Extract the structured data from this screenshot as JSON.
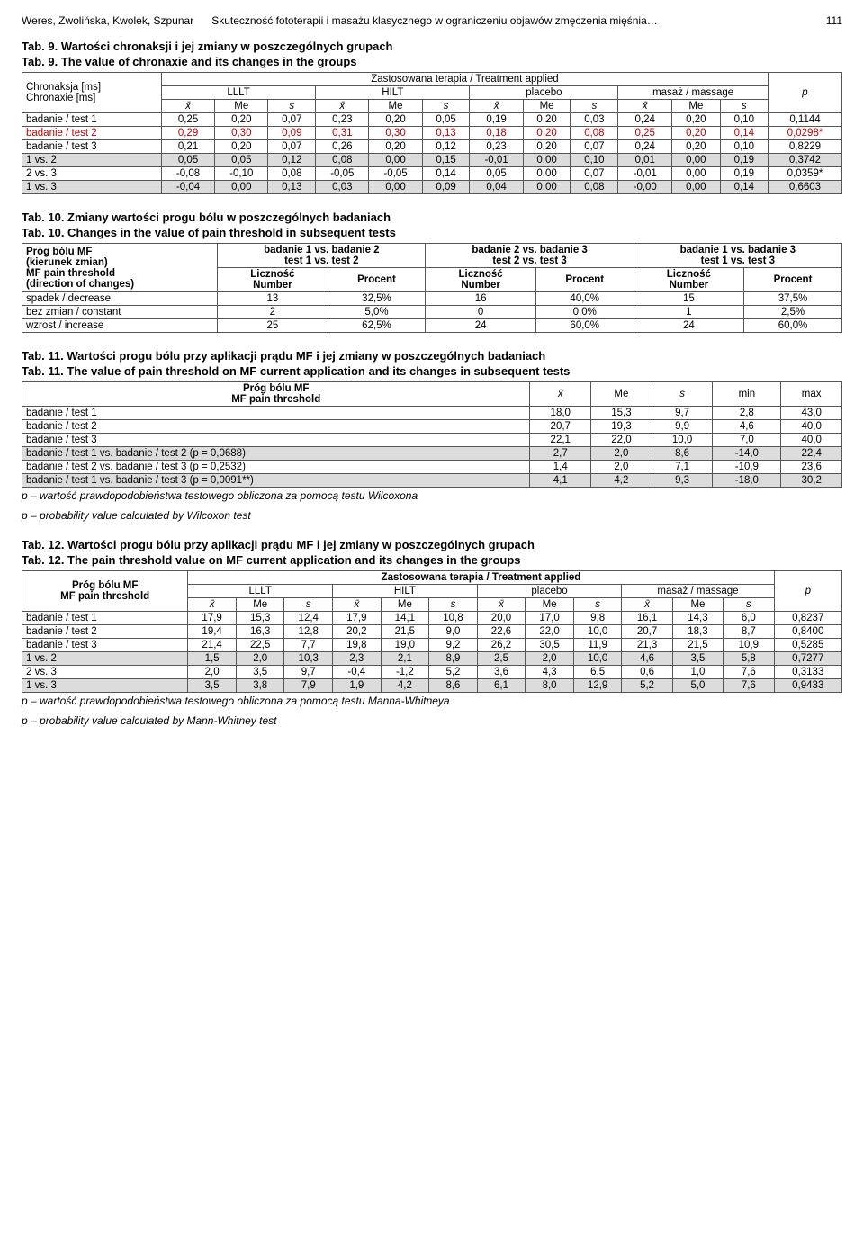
{
  "header": {
    "authors": "Weres, Zwolińska, Kwolek, Szpunar",
    "title_frag": "Skuteczność fototerapii i masażu klasycznego w ograniczeniu objawów zmęczenia mięśnia…",
    "page": "111"
  },
  "tab9": {
    "cap1": "Tab. 9. Wartości chronaksji i jej zmiany w poszczególnych grupach",
    "cap2": "Tab. 9. The value of chronaxie and its changes in the groups",
    "rowhead1": "Chronaksja [ms]",
    "rowhead2": "Chronaxie [ms]",
    "spanhead": "Zastosowana terapia / Treatment applied",
    "groups": [
      "LLLT",
      "HILT",
      "placebo",
      "masaż / massage"
    ],
    "sub": {
      "x": "x",
      "me": "Me",
      "s": "s"
    },
    "p": "p",
    "rows": [
      {
        "label": "badanie / test 1",
        "v": [
          "0,25",
          "0,20",
          "0,07",
          "0,23",
          "0,20",
          "0,05",
          "0,19",
          "0,20",
          "0,03",
          "0,24",
          "0,20",
          "0,10"
        ],
        "p": "0,1144",
        "hl": ""
      },
      {
        "label": "badanie / test 2",
        "v": [
          "0,29",
          "0,30",
          "0,09",
          "0,31",
          "0,30",
          "0,13",
          "0,18",
          "0,20",
          "0,08",
          "0,25",
          "0,20",
          "0,14"
        ],
        "p": "0,0298*",
        "hl": "red"
      },
      {
        "label": "badanie / test 3",
        "v": [
          "0,21",
          "0,20",
          "0,07",
          "0,26",
          "0,20",
          "0,12",
          "0,23",
          "0,20",
          "0,07",
          "0,24",
          "0,20",
          "0,10"
        ],
        "p": "0,8229",
        "hl": ""
      },
      {
        "label": "1 vs. 2",
        "v": [
          "0,05",
          "0,05",
          "0,12",
          "0,08",
          "0,00",
          "0,15",
          "-0,01",
          "0,00",
          "0,10",
          "0,01",
          "0,00",
          "0,19"
        ],
        "p": "0,3742",
        "hl": "grey"
      },
      {
        "label": "2 vs. 3",
        "v": [
          "-0,08",
          "-0,10",
          "0,08",
          "-0,05",
          "-0,05",
          "0,14",
          "0,05",
          "0,00",
          "0,07",
          "-0,01",
          "0,00",
          "0,19"
        ],
        "p": "0,0359*",
        "hl": ""
      },
      {
        "label": "1 vs. 3",
        "v": [
          "-0,04",
          "0,00",
          "0,13",
          "0,03",
          "0,00",
          "0,09",
          "0,04",
          "0,00",
          "0,08",
          "-0,00",
          "0,00",
          "0,14"
        ],
        "p": "0,6603",
        "hl": "grey"
      }
    ]
  },
  "tab10": {
    "cap1": "Tab. 10. Zmiany wartości progu bólu w poszczególnych badaniach",
    "cap2": "Tab. 10. Changes in the value of pain threshold in subsequent tests",
    "rowhead1": "Próg bólu MF",
    "rowhead2": "(kierunek zmian)",
    "rowhead3": "MF pain threshold",
    "rowhead4": "(direction of changes)",
    "colpairs": [
      {
        "l1": "badanie 1 vs. badanie 2",
        "l2": "test 1 vs. test 2"
      },
      {
        "l1": "badanie 2 vs. badanie 3",
        "l2": "test 2 vs. test 3"
      },
      {
        "l1": "badanie 1 vs. badanie 3",
        "l2": "test 1 vs. test 3"
      }
    ],
    "sub": {
      "n": "Liczność\nNumber",
      "p": "Procent"
    },
    "rows": [
      {
        "label": "spadek / decrease",
        "v": [
          "13",
          "32,5%",
          "16",
          "40,0%",
          "15",
          "37,5%"
        ]
      },
      {
        "label": "bez zmian / constant",
        "v": [
          "2",
          "5,0%",
          "0",
          "0,0%",
          "1",
          "2,5%"
        ]
      },
      {
        "label": "wzrost / increase",
        "v": [
          "25",
          "62,5%",
          "24",
          "60,0%",
          "24",
          "60,0%"
        ]
      }
    ]
  },
  "tab11": {
    "cap1": "Tab. 11. Wartości progu bólu przy aplikacji prądu MF i jej zmiany w poszczególnych badaniach",
    "cap2": "Tab. 11. The value of pain threshold on MF current application and its changes in subsequent tests",
    "rowhead1": "Próg bólu MF",
    "rowhead2": "MF pain threshold",
    "cols": {
      "x": "x",
      "me": "Me",
      "s": "s",
      "min": "min",
      "max": "max"
    },
    "rows": [
      {
        "label": "badanie / test 1",
        "v": [
          "18,0",
          "15,3",
          "9,7",
          "2,8",
          "43,0"
        ],
        "hl": ""
      },
      {
        "label": "badanie / test 2",
        "v": [
          "20,7",
          "19,3",
          "9,9",
          "4,6",
          "40,0"
        ],
        "hl": ""
      },
      {
        "label": "badanie / test 3",
        "v": [
          "22,1",
          "22,0",
          "10,0",
          "7,0",
          "40,0"
        ],
        "hl": ""
      },
      {
        "label": "badanie / test  1 vs. badanie / test 2 (p = 0,0688)",
        "v": [
          "2,7",
          "2,0",
          "8,6",
          "-14,0",
          "22,4"
        ],
        "hl": "grey"
      },
      {
        "label": "badanie / test  2 vs. badanie / test  3 (p = 0,2532)",
        "v": [
          "1,4",
          "2,0",
          "7,1",
          "-10,9",
          "23,6"
        ],
        "hl": ""
      },
      {
        "label": "badanie / test  1 vs. badanie / test  3 (p = 0,0091**)",
        "v": [
          "4,1",
          "4,2",
          "9,3",
          "-18,0",
          "30,2"
        ],
        "hl": "grey"
      }
    ],
    "note1": "p – wartość prawdopodobieństwa testowego obliczona za pomocą testu Wilcoxona",
    "note2": "p – probability value calculated by Wilcoxon test"
  },
  "tab12": {
    "cap1": "Tab. 12. Wartości progu bólu przy aplikacji prądu MF i jej zmiany w poszczególnych grupach",
    "cap2": "Tab. 12. The pain threshold value on MF current application and its changes in the groups",
    "rowhead1": "Próg bólu MF",
    "rowhead2": "MF pain threshold",
    "spanhead": "Zastosowana terapia / Treatment applied",
    "groups": [
      "LLLT",
      "HILT",
      "placebo",
      "masaż / massage"
    ],
    "sub": {
      "x": "x",
      "me": "Me",
      "s": "s"
    },
    "p": "p",
    "rows": [
      {
        "label": "badanie / test 1",
        "v": [
          "17,9",
          "15,3",
          "12,4",
          "17,9",
          "14,1",
          "10,8",
          "20,0",
          "17,0",
          "9,8",
          "16,1",
          "14,3",
          "6,0"
        ],
        "p": "0,8237",
        "hl": ""
      },
      {
        "label": "badanie / test 2",
        "v": [
          "19,4",
          "16,3",
          "12,8",
          "20,2",
          "21,5",
          "9,0",
          "22,6",
          "22,0",
          "10,0",
          "20,7",
          "18,3",
          "8,7"
        ],
        "p": "0,8400",
        "hl": ""
      },
      {
        "label": "badanie / test 3",
        "v": [
          "21,4",
          "22,5",
          "7,7",
          "19,8",
          "19,0",
          "9,2",
          "26,2",
          "30,5",
          "11,9",
          "21,3",
          "21,5",
          "10,9"
        ],
        "p": "0,5285",
        "hl": ""
      },
      {
        "label": "1 vs. 2",
        "v": [
          "1,5",
          "2,0",
          "10,3",
          "2,3",
          "2,1",
          "8,9",
          "2,5",
          "2,0",
          "10,0",
          "4,6",
          "3,5",
          "5,8"
        ],
        "p": "0,7277",
        "hl": "grey"
      },
      {
        "label": "2 vs. 3",
        "v": [
          "2,0",
          "3,5",
          "9,7",
          "-0,4",
          "-1,2",
          "5,2",
          "3,6",
          "4,3",
          "6,5",
          "0,6",
          "1,0",
          "7,6"
        ],
        "p": "0,3133",
        "hl": ""
      },
      {
        "label": "1 vs. 3",
        "v": [
          "3,5",
          "3,8",
          "7,9",
          "1,9",
          "4,2",
          "8,6",
          "6,1",
          "8,0",
          "12,9",
          "5,2",
          "5,0",
          "7,6"
        ],
        "p": "0,9433",
        "hl": "grey"
      }
    ],
    "note1": "p – wartość prawdopodobieństwa testowego obliczona za pomocą testu Manna-Whitneya",
    "note2": "p – probability value calculated by Mann-Whitney test"
  }
}
